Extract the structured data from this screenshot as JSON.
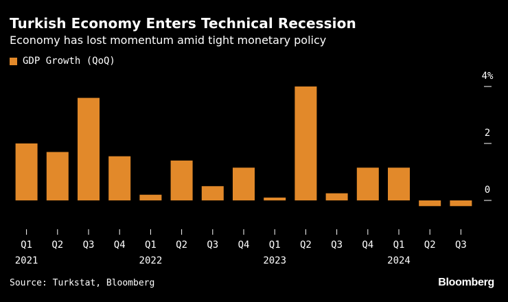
{
  "header": {
    "title": "Turkish Economy Enters Technical Recession",
    "subtitle": "Economy has lost momentum amid tight monetary policy"
  },
  "footer": {
    "source": "Source: Turkstat, Bloomberg",
    "brand": "Bloomberg"
  },
  "colors": {
    "bar": "#e2892a",
    "background": "#000000",
    "text": "#ffffff"
  },
  "chart_data": {
    "type": "bar",
    "title": "Turkish Economy Enters Technical Recession",
    "subtitle": "Economy has lost momentum amid tight monetary policy",
    "xlabel": "",
    "ylabel": "",
    "ylim": [
      -0.5,
      4.2
    ],
    "yticks": [
      0,
      2,
      4
    ],
    "ytick_labels": [
      "0",
      "2",
      "4%"
    ],
    "grid": false,
    "legend": "top-left",
    "categories": [
      "Q1",
      "Q2",
      "Q3",
      "Q4",
      "Q1",
      "Q2",
      "Q3",
      "Q4",
      "Q1",
      "Q2",
      "Q3",
      "Q4",
      "Q1",
      "Q2",
      "Q3"
    ],
    "year_labels": [
      "2021",
      "",
      "",
      "",
      "2022",
      "",
      "",
      "",
      "2023",
      "",
      "",
      "",
      "2024",
      "",
      ""
    ],
    "series": [
      {
        "name": "GDP Growth (QoQ)",
        "values": [
          2.0,
          1.7,
          3.6,
          1.55,
          0.2,
          1.4,
          0.5,
          1.15,
          0.1,
          4.0,
          0.25,
          1.15,
          1.15,
          -0.2,
          -0.2
        ]
      }
    ]
  }
}
